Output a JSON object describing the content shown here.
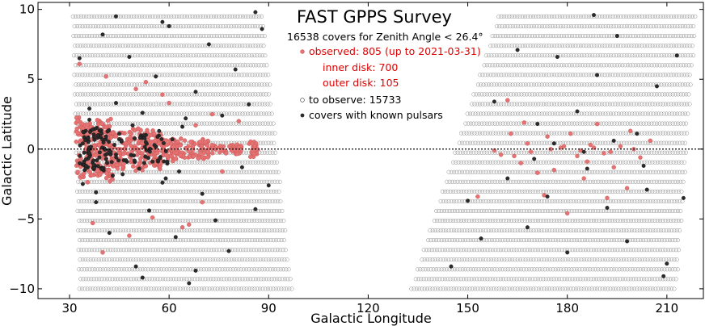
{
  "chart_data": {
    "type": "scatter",
    "title": "FAST GPPS Survey",
    "xlabel": "Galactic Longitude",
    "ylabel": "Galactic Latitude",
    "xlim": [
      20.5,
      221
    ],
    "ylim": [
      -10.7,
      10.5
    ],
    "xticks": [
      30,
      60,
      90,
      120,
      150,
      180,
      210
    ],
    "yticks": [
      -10,
      -5,
      0,
      5,
      10
    ],
    "zero_line": {
      "y": 0,
      "style": "dotted"
    },
    "regions": [
      {
        "name": "inner-disk",
        "top": {
          "l_min": 31,
          "l_max": 88,
          "b": 10
        },
        "bottom": {
          "l_min": 33,
          "l_max": 97,
          "b": -10
        }
      },
      {
        "name": "outer-disk",
        "top": {
          "l_min": 160,
          "l_max": 219,
          "b": 10
        },
        "bottom": {
          "l_min": 133,
          "l_max": 213,
          "b": -10
        }
      }
    ],
    "grid_step_deg": 0.8,
    "annotations": {
      "subtitle": "16538 covers for Zenith Angle < 26.4°",
      "observed": "observed: 805 (up to 2021-03-31)",
      "inner": "inner disk: 700",
      "outer": "outer disk: 105",
      "to_observe": "to observe: 15733",
      "pulsars": "covers with known pulsars"
    },
    "series": [
      {
        "name": "to observe",
        "count": 15733,
        "marker": "open circle",
        "color": "#777777"
      },
      {
        "name": "observed",
        "count": 805,
        "inner_disk": 700,
        "outer_disk": 105,
        "color": "#e57373",
        "until": "2021-03-31"
      },
      {
        "name": "covers with known pulsars",
        "marker": "filled circle",
        "color": "#2b2b2b"
      }
    ],
    "known_pulsar_points": [
      [
        33,
        6.5
      ],
      [
        36,
        2.1
      ],
      [
        38,
        -3.8
      ],
      [
        40,
        8.2
      ],
      [
        42,
        -6
      ],
      [
        44,
        3.3
      ],
      [
        46,
        -1.8
      ],
      [
        48,
        6.6
      ],
      [
        50,
        -8.4
      ],
      [
        52,
        2.6
      ],
      [
        54,
        -4.4
      ],
      [
        56,
        5.2
      ],
      [
        58,
        -2.4
      ],
      [
        60,
        8.8
      ],
      [
        62,
        -6.3
      ],
      [
        64,
        1.6
      ],
      [
        66,
        -9.6
      ],
      [
        68,
        4.1
      ],
      [
        70,
        -3.2
      ],
      [
        72,
        7.5
      ],
      [
        74,
        -5.1
      ],
      [
        76,
        2.4
      ],
      [
        78,
        -7.3
      ],
      [
        80,
        5.7
      ],
      [
        82,
        -1.3
      ],
      [
        84,
        3.2
      ],
      [
        86,
        -4.3
      ],
      [
        88,
        8.6
      ],
      [
        90,
        -2.6
      ],
      [
        35,
        -1.2
      ],
      [
        37,
        1.4
      ],
      [
        39,
        -0.6
      ],
      [
        41,
        0.9
      ],
      [
        43,
        -1.9
      ],
      [
        45,
        1.1
      ],
      [
        47,
        -0.8
      ],
      [
        49,
        1.7
      ],
      [
        51,
        -1.4
      ],
      [
        53,
        0.5
      ],
      [
        55,
        -0.9
      ],
      [
        57,
        1.3
      ],
      [
        59,
        -2.1
      ],
      [
        61,
        0.7
      ],
      [
        63,
        -1.6
      ],
      [
        65,
        2.2
      ],
      [
        34,
        -2.5
      ],
      [
        36,
        2.9
      ],
      [
        38,
        -3.1
      ],
      [
        34,
        0.4
      ],
      [
        36,
        -0.3
      ],
      [
        44,
        9.5
      ],
      [
        52,
        -9.2
      ],
      [
        58,
        9.1
      ],
      [
        68,
        -8.7
      ],
      [
        86,
        9.8
      ],
      [
        158,
        3.4
      ],
      [
        162,
        -2.1
      ],
      [
        165,
        7.1
      ],
      [
        168,
        -5.6
      ],
      [
        171,
        1.8
      ],
      [
        174,
        -3.4
      ],
      [
        177,
        6.6
      ],
      [
        180,
        -7.4
      ],
      [
        183,
        2.7
      ],
      [
        186,
        -1.4
      ],
      [
        189,
        5.3
      ],
      [
        192,
        -4.2
      ],
      [
        195,
        8.1
      ],
      [
        198,
        -6.6
      ],
      [
        201,
        1.1
      ],
      [
        204,
        -2.9
      ],
      [
        207,
        4.5
      ],
      [
        210,
        -8.2
      ],
      [
        213,
        6.7
      ],
      [
        215,
        -3.5
      ],
      [
        170,
        -0.7
      ],
      [
        176,
        0.4
      ],
      [
        185,
        -0.2
      ],
      [
        194,
        0.6
      ],
      [
        203,
        -1.2
      ],
      [
        209,
        -9.1
      ],
      [
        188,
        9.6
      ],
      [
        154,
        -6.4
      ],
      [
        145,
        -8.4
      ],
      [
        150,
        -3.7
      ]
    ],
    "observed_outer_points": [
      [
        162,
        3.5
      ],
      [
        163,
        1.1
      ],
      [
        166,
        -1
      ],
      [
        168,
        0.4
      ],
      [
        171,
        -1.7
      ],
      [
        173,
        -3.3
      ],
      [
        176,
        -1.5
      ],
      [
        178,
        0.1
      ],
      [
        181,
        1.1
      ],
      [
        183,
        -0.5
      ],
      [
        185,
        -2.1
      ],
      [
        187,
        0.3
      ],
      [
        189,
        1.8
      ],
      [
        191,
        -0.3
      ],
      [
        194,
        -1.3
      ],
      [
        196,
        0.2
      ],
      [
        198,
        -2.8
      ],
      [
        202,
        -0.6
      ],
      [
        205,
        0.6
      ],
      [
        160,
        -0.4
      ],
      [
        167,
        1.9
      ],
      [
        174,
        0.9
      ],
      [
        180,
        -4.6
      ],
      [
        186,
        -0.9
      ],
      [
        192,
        -3.5
      ],
      [
        199,
        1.3
      ],
      [
        153,
        -3.4
      ],
      [
        158,
        -0.1
      ],
      [
        164,
        -0.5
      ],
      [
        169,
        -0.2
      ],
      [
        175,
        0.0
      ],
      [
        179,
        0.2
      ],
      [
        184,
        -0.1
      ],
      [
        188,
        0.1
      ],
      [
        193,
        -0.2
      ],
      [
        200,
        0.0
      ]
    ],
    "observed_inner_clusters": [
      {
        "l_min": 32,
        "l_max": 43,
        "b_half": 2.4,
        "n": 230
      },
      {
        "l_min": 43,
        "l_max": 58,
        "b_half": 1.6,
        "n": 200
      },
      {
        "l_min": 58,
        "l_max": 72,
        "b_half": 0.9,
        "n": 110
      },
      {
        "l_min": 72,
        "l_max": 82,
        "b_half": 0.4,
        "n": 55
      },
      {
        "l_min": 84,
        "l_max": 87,
        "b_half": 0.7,
        "n": 25
      }
    ],
    "observed_inner_scatter": [
      [
        33,
        6.1
      ],
      [
        41,
        5.2
      ],
      [
        50,
        4.3
      ],
      [
        55,
        -4.9
      ],
      [
        60,
        3.3
      ],
      [
        64,
        -5.6
      ],
      [
        70,
        -3.8
      ],
      [
        40,
        -7.4
      ],
      [
        66,
        -5.4
      ],
      [
        73,
        2.5
      ],
      [
        81,
        2.0
      ],
      [
        48,
        -6.2
      ],
      [
        85,
        0.4
      ],
      [
        58,
        3.9
      ],
      [
        37,
        -5.3
      ],
      [
        53,
        4.8
      ],
      [
        68,
        1.7
      ],
      [
        76,
        -1.6
      ]
    ],
    "pulsar_core_clusters": [
      {
        "l_min": 33,
        "l_max": 42,
        "b_half": 1.6,
        "n": 75
      },
      {
        "l_min": 42,
        "l_max": 60,
        "b_half": 1.1,
        "n": 45
      }
    ]
  }
}
